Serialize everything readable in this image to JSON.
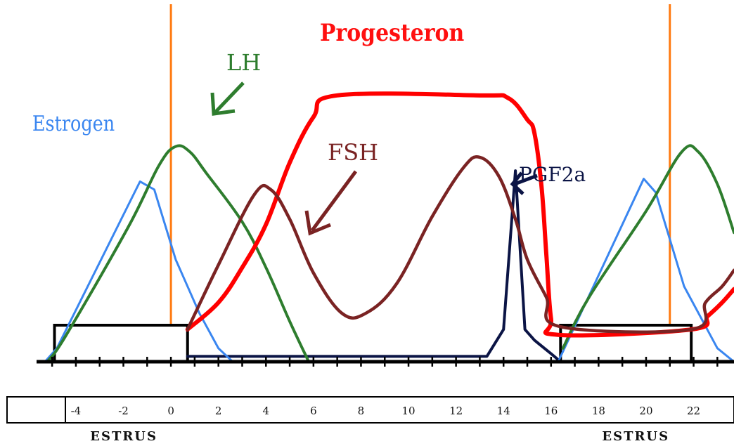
{
  "chart_data": {
    "type": "line",
    "title": "",
    "xlabel": "",
    "ylabel": "",
    "x_tick_labels": [
      "-4",
      "-2",
      "0",
      "2",
      "4",
      "6",
      "8",
      "10",
      "12",
      "14",
      "16",
      "18",
      "20",
      "22"
    ],
    "xlim": [
      -5.3,
      23.7
    ],
    "ylim": [
      0,
      100
    ],
    "grid": false,
    "series": [
      {
        "name": "Estrogen",
        "color": "#3a86f0",
        "x": [
          -5.3,
          -4.8,
          -1.3,
          -0.7,
          0.2,
          1.2,
          2.0,
          2.6,
          16.3,
          19.9,
          20.4,
          21.6,
          23.0,
          23.7
        ],
        "y": [
          0,
          5,
          67,
          64,
          38,
          18,
          5,
          0,
          0,
          68,
          63,
          28,
          5,
          0
        ]
      },
      {
        "name": "LH",
        "color": "#2e7d2e",
        "x": [
          -5.2,
          -4.4,
          -1.8,
          -0.5,
          0.2,
          0.8,
          1.5,
          3.0,
          4.0,
          5.0,
          5.8,
          16.5,
          17.6,
          20.0,
          21.5,
          22.2,
          23.0,
          23.7
        ],
        "y": [
          0,
          10,
          50,
          73,
          80,
          78,
          70,
          52,
          35,
          15,
          0,
          5,
          24,
          56,
          78,
          78,
          66,
          48
        ]
      },
      {
        "name": "Progesteron",
        "color": "#ff0000",
        "x": [
          0.7,
          2.0,
          3.0,
          4.0,
          5.0,
          6.0,
          7.0,
          13.0,
          14.2,
          15.0,
          15.3,
          15.6,
          15.8,
          16.0,
          16.3,
          21.9,
          22.6,
          23.2,
          23.7
        ],
        "y": [
          12,
          22,
          35,
          51,
          74,
          91,
          99,
          99,
          98,
          90,
          85,
          65,
          40,
          16,
          10,
          12,
          17,
          22,
          27
        ]
      },
      {
        "name": "FSH",
        "color": "#7a2323",
        "x": [
          0.7,
          2.0,
          3.5,
          4.2,
          5.0,
          6.0,
          7.2,
          8.2,
          9.5,
          11.0,
          12.3,
          13.0,
          13.8,
          14.5,
          15.0,
          15.8,
          16.4,
          21.9,
          22.5,
          23.2,
          23.7
        ],
        "y": [
          12,
          36,
          62,
          64,
          53,
          33,
          18,
          18,
          29,
          54,
          72,
          76,
          69,
          53,
          38,
          24,
          13,
          12,
          22,
          28,
          34
        ]
      },
      {
        "name": "PGF2a",
        "color": "#0b1445",
        "x": [
          0.7,
          13.3,
          14.0,
          14.5,
          14.9,
          15.3,
          16.0,
          16.4
        ],
        "y": [
          2,
          2,
          12,
          71,
          12,
          8,
          3,
          0
        ]
      }
    ],
    "estrus_periods": [
      {
        "label": "ESTRUS",
        "start": -4.9,
        "end": 0.7
      },
      {
        "label": "ESTRUS",
        "start": 16.4,
        "end": 21.9
      }
    ],
    "annotations": [
      {
        "text": "LH",
        "target_series": "LH"
      },
      {
        "text": "FSH",
        "target_series": "FSH"
      },
      {
        "text": "PGF2a",
        "target_series": "PGF2a"
      }
    ],
    "vertical_markers": [
      0,
      21
    ]
  }
}
